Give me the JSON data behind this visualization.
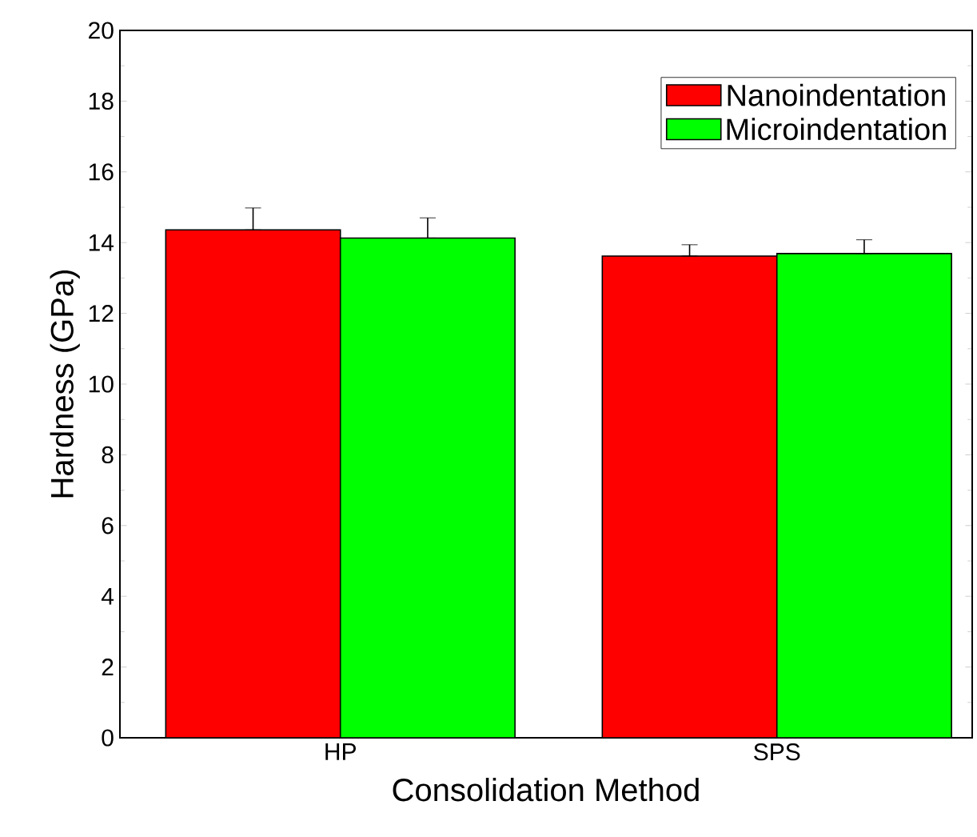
{
  "chart_data": {
    "type": "bar",
    "xlabel": "Consolidation Method",
    "ylabel": "Hardness (GPa)",
    "categories": [
      "HP",
      "SPS"
    ],
    "series": [
      {
        "name": "Nanoindentation",
        "color": "#ff0000",
        "values": [
          14.36,
          13.62
        ],
        "errors": [
          [
            14.36,
            14.98
          ],
          [
            13.62,
            13.94
          ]
        ]
      },
      {
        "name": "Microindentation",
        "color": "#00ff00",
        "values": [
          14.13,
          13.69
        ],
        "errors": [
          [
            14.13,
            14.7
          ],
          [
            13.69,
            14.08
          ]
        ]
      }
    ],
    "ylim": [
      0,
      20
    ],
    "yticks": [
      0,
      2,
      4,
      6,
      8,
      10,
      12,
      14,
      16,
      18,
      20
    ],
    "grid": false,
    "legend": "top right"
  }
}
